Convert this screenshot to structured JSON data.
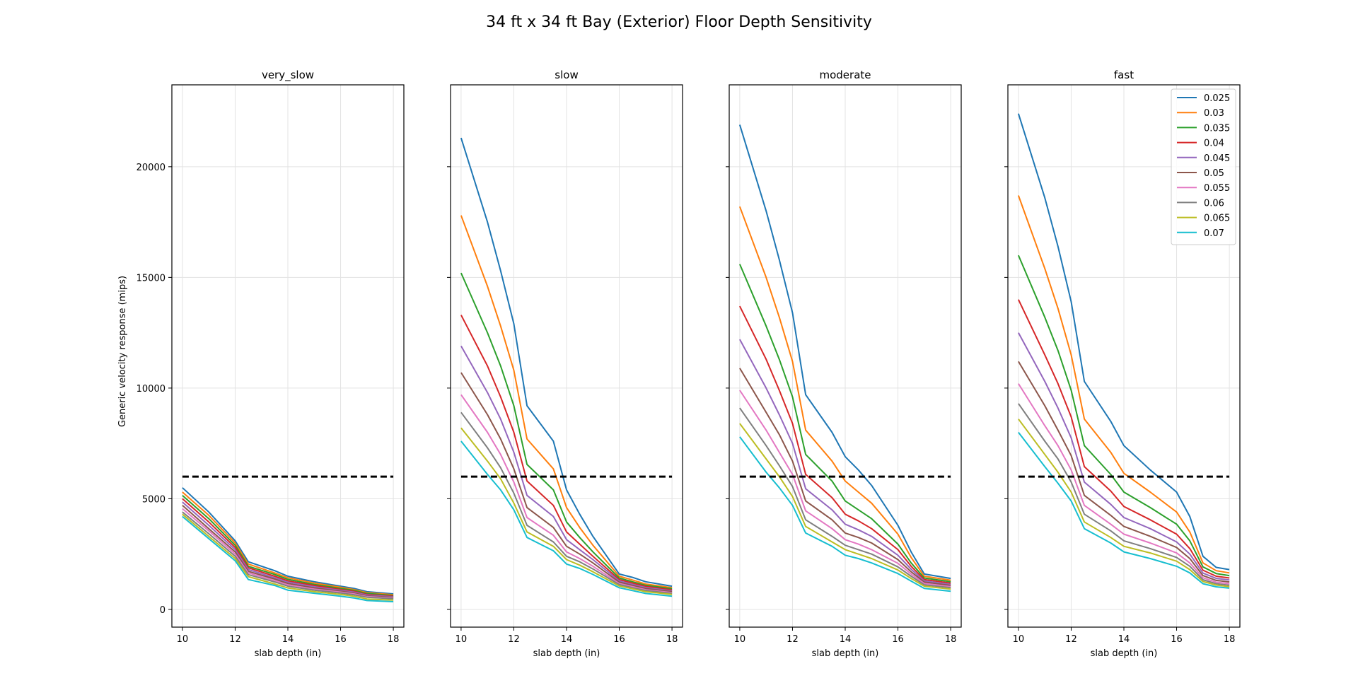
{
  "figure": {
    "title": "34 ft x 34 ft Bay (Exterior) Floor Depth Sensitivity",
    "ylabel": "Generic velocity response (mips)"
  },
  "chart_data": {
    "type": "line",
    "shared_y": true,
    "xlabel": "slab depth (in)",
    "ylabel": "Generic velocity response (mips)",
    "xlim": [
      9.6,
      18.4
    ],
    "ylim": [
      -800,
      23700
    ],
    "x_ticks": [
      10,
      12,
      14,
      16,
      18
    ],
    "y_ticks": [
      0,
      5000,
      10000,
      15000,
      20000
    ],
    "grid": true,
    "legend_location": "upper right of last panel",
    "threshold": {
      "value": 6000,
      "x_range": [
        10,
        18
      ],
      "style": "dashed",
      "color": "#000000"
    },
    "series_names": [
      "0.025",
      "0.03",
      "0.035",
      "0.04",
      "0.045",
      "0.05",
      "0.055",
      "0.06",
      "0.065",
      "0.07"
    ],
    "series_colors": [
      "#1f77b4",
      "#ff7f0e",
      "#2ca02c",
      "#d62728",
      "#9467bd",
      "#8c564b",
      "#e377c2",
      "#7f7f7f",
      "#bcbd22",
      "#17becf"
    ],
    "panels": [
      {
        "title": "very_slow",
        "x": [
          10,
          11,
          12,
          12.5,
          13.5,
          14,
          15,
          16,
          16.5,
          17,
          18
        ],
        "series": [
          {
            "name": "0.025",
            "values": [
              5500,
              4400,
              3100,
              2150,
              1750,
              1500,
              1250,
              1050,
              950,
              800,
              700
            ]
          },
          {
            "name": "0.03",
            "values": [
              5300,
              4250,
              3000,
              2050,
              1650,
              1430,
              1190,
              1000,
              900,
              760,
              660
            ]
          },
          {
            "name": "0.035",
            "values": [
              5150,
              4100,
              2900,
              1950,
              1580,
              1360,
              1130,
              950,
              860,
              720,
              630
            ]
          },
          {
            "name": "0.04",
            "values": [
              5000,
              3950,
              2800,
              1880,
              1500,
              1290,
              1080,
              900,
              820,
              680,
              600
            ]
          },
          {
            "name": "0.045",
            "values": [
              4850,
              3800,
              2700,
              1800,
              1430,
              1230,
              1020,
              860,
              780,
              650,
              570
            ]
          },
          {
            "name": "0.05",
            "values": [
              4700,
              3650,
              2600,
              1720,
              1370,
              1170,
              970,
              820,
              740,
              610,
              540
            ]
          },
          {
            "name": "0.055",
            "values": [
              4550,
              3550,
              2500,
              1650,
              1300,
              1110,
              920,
              780,
              700,
              580,
              510
            ]
          },
          {
            "name": "0.06",
            "values": [
              4400,
              3420,
              2400,
              1570,
              1240,
              1050,
              870,
              740,
              660,
              550,
              480
            ]
          },
          {
            "name": "0.065",
            "values": [
              4300,
              3300,
              2300,
              1480,
              1150,
              970,
              800,
              680,
              600,
              470,
              420
            ]
          },
          {
            "name": "0.07",
            "values": [
              4200,
              3200,
              2200,
              1350,
              1080,
              870,
              730,
              600,
              520,
              400,
              350
            ]
          }
        ]
      },
      {
        "title": "slow",
        "x": [
          10,
          11,
          11.5,
          12,
          12.5,
          13.5,
          14,
          14.5,
          15,
          16,
          16.5,
          17,
          18
        ],
        "series": [
          {
            "name": "0.025",
            "values": [
              21300,
              17500,
              15300,
              12900,
              9200,
              7600,
              5400,
              4300,
              3300,
              1600,
              1450,
              1250,
              1050
            ]
          },
          {
            "name": "0.03",
            "values": [
              17800,
              14600,
              12800,
              10800,
              7700,
              6350,
              4600,
              3700,
              2900,
              1500,
              1330,
              1150,
              980
            ]
          },
          {
            "name": "0.035",
            "values": [
              15200,
              12500,
              11000,
              9200,
              6550,
              5400,
              3950,
              3250,
              2600,
              1420,
              1250,
              1090,
              930
            ]
          },
          {
            "name": "0.04",
            "values": [
              13300,
              11000,
              9600,
              8000,
              5800,
              4700,
              3500,
              2950,
              2400,
              1350,
              1190,
              1040,
              880
            ]
          },
          {
            "name": "0.045",
            "values": [
              11900,
              9800,
              8600,
              7100,
              5150,
              4200,
              3150,
              2700,
              2250,
              1290,
              1130,
              990,
              840
            ]
          },
          {
            "name": "0.05",
            "values": [
              10700,
              8800,
              7700,
              6350,
              4600,
              3700,
              2850,
              2500,
              2100,
              1230,
              1080,
              940,
              800
            ]
          },
          {
            "name": "0.055",
            "values": [
              9700,
              8000,
              7000,
              5750,
              4150,
              3350,
              2600,
              2300,
              1950,
              1170,
              1030,
              890,
              760
            ]
          },
          {
            "name": "0.06",
            "values": [
              8900,
              7300,
              6400,
              5250,
              3800,
              3050,
              2400,
              2150,
              1830,
              1120,
              980,
              850,
              720
            ]
          },
          {
            "name": "0.065",
            "values": [
              8200,
              6700,
              5900,
              4800,
              3500,
              2850,
              2250,
              2000,
              1700,
              1060,
              930,
              800,
              680
            ]
          },
          {
            "name": "0.07",
            "values": [
              7600,
              6100,
              5400,
              4500,
              3250,
              2650,
              2050,
              1850,
              1580,
              980,
              850,
              720,
              600
            ]
          }
        ]
      },
      {
        "title": "moderate",
        "x": [
          10,
          11,
          11.5,
          12,
          12.5,
          13.5,
          14,
          14.5,
          15,
          16,
          16.5,
          17,
          18
        ],
        "series": [
          {
            "name": "0.025",
            "values": [
              21900,
              18000,
              15800,
              13400,
              9700,
              8000,
              6900,
              6300,
              5600,
              3800,
              2600,
              1600,
              1400
            ]
          },
          {
            "name": "0.03",
            "values": [
              18200,
              15000,
              13200,
              11200,
              8100,
              6700,
              5800,
              5300,
              4800,
              3400,
              2350,
              1500,
              1320
            ]
          },
          {
            "name": "0.035",
            "values": [
              15600,
              12800,
              11300,
              9600,
              7000,
              5800,
              4900,
              4500,
              4100,
              2950,
              2100,
              1420,
              1250
            ]
          },
          {
            "name": "0.04",
            "values": [
              13700,
              11300,
              9900,
              8400,
              6100,
              5050,
              4300,
              4000,
              3650,
              2700,
              1950,
              1350,
              1190
            ]
          },
          {
            "name": "0.045",
            "values": [
              12200,
              10000,
              8800,
              7500,
              5450,
              4500,
              3850,
              3600,
              3300,
              2450,
              1820,
              1290,
              1130
            ]
          },
          {
            "name": "0.05",
            "values": [
              10900,
              8900,
              7900,
              6700,
              4900,
              4050,
              3450,
              3250,
              3000,
              2250,
              1700,
              1230,
              1080
            ]
          },
          {
            "name": "0.055",
            "values": [
              9900,
              8100,
              7100,
              6100,
              4450,
              3650,
              3150,
              2950,
              2700,
              2080,
              1600,
              1170,
              1030
            ]
          },
          {
            "name": "0.06",
            "values": [
              9100,
              7400,
              6500,
              5550,
              4050,
              3300,
              2900,
              2700,
              2500,
              1920,
              1500,
              1110,
              980
            ]
          },
          {
            "name": "0.065",
            "values": [
              8400,
              6800,
              6000,
              5100,
              3750,
              3050,
              2700,
              2500,
              2300,
              1780,
              1400,
              1050,
              920
            ]
          },
          {
            "name": "0.07",
            "values": [
              7800,
              6200,
              5500,
              4700,
              3450,
              2850,
              2450,
              2300,
              2100,
              1620,
              1280,
              950,
              820
            ]
          }
        ]
      },
      {
        "title": "fast",
        "x": [
          10,
          11,
          11.5,
          12,
          12.5,
          13.5,
          14,
          15,
          16,
          16.5,
          17,
          17.5,
          18
        ],
        "series": [
          {
            "name": "0.025",
            "values": [
              22400,
              18600,
              16400,
              13900,
              10300,
              8500,
              7400,
              6300,
              5300,
              4200,
              2400,
              1900,
              1800
            ]
          },
          {
            "name": "0.03",
            "values": [
              18700,
              15400,
              13600,
              11500,
              8600,
              7100,
              6150,
              5300,
              4400,
              3500,
              2100,
              1750,
              1650
            ]
          },
          {
            "name": "0.035",
            "values": [
              16000,
              13200,
              11700,
              9900,
              7400,
              6100,
              5300,
              4600,
              3850,
              3100,
              1920,
              1620,
              1530
            ]
          },
          {
            "name": "0.04",
            "values": [
              14000,
              11500,
              10200,
              8700,
              6450,
              5350,
              4650,
              4050,
              3400,
              2750,
              1770,
              1500,
              1420
            ]
          },
          {
            "name": "0.045",
            "values": [
              12500,
              10300,
              9100,
              7750,
              5750,
              4750,
              4150,
              3650,
              3050,
              2500,
              1640,
              1400,
              1330
            ]
          },
          {
            "name": "0.05",
            "values": [
              11200,
              9200,
              8100,
              6950,
              5150,
              4250,
              3750,
              3300,
              2800,
              2300,
              1530,
              1310,
              1240
            ]
          },
          {
            "name": "0.055",
            "values": [
              10200,
              8300,
              7400,
              6300,
              4700,
              3850,
              3400,
              3000,
              2550,
              2100,
              1430,
              1230,
              1160
            ]
          },
          {
            "name": "0.06",
            "values": [
              9300,
              7600,
              6800,
              5750,
              4300,
              3550,
              3100,
              2750,
              2350,
              1950,
              1340,
              1160,
              1090
            ]
          },
          {
            "name": "0.065",
            "values": [
              8600,
              7000,
              6200,
              5300,
              3950,
              3250,
              2850,
              2550,
              2180,
              1800,
              1260,
              1100,
              1030
            ]
          },
          {
            "name": "0.07",
            "values": [
              8000,
              6450,
              5700,
              4900,
              3650,
              3000,
              2600,
              2300,
              1950,
              1650,
              1160,
              1020,
              960
            ]
          }
        ]
      }
    ]
  }
}
